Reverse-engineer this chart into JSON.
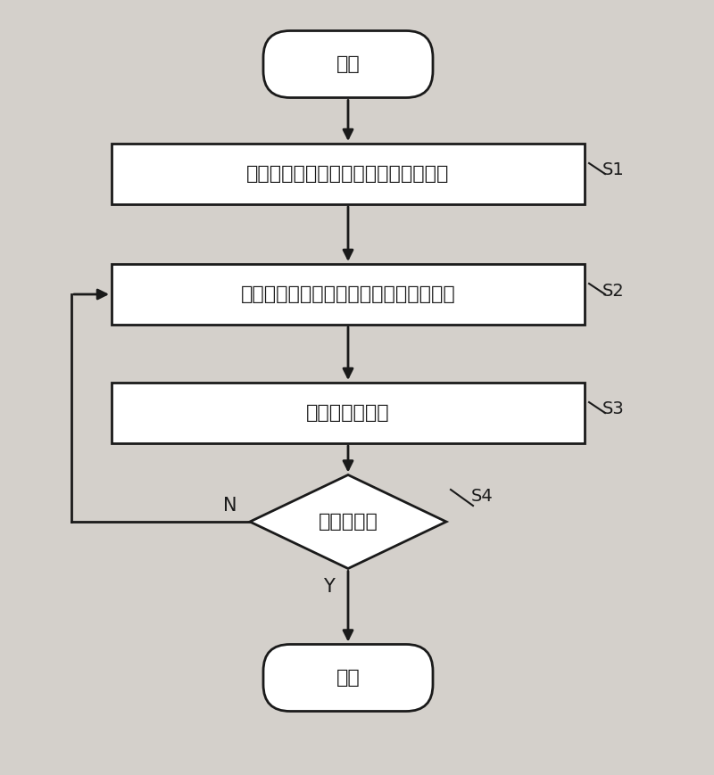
{
  "bg_color": "#d4d0cb",
  "box_color": "#ffffff",
  "box_edge_color": "#1a1a1a",
  "arrow_color": "#1a1a1a",
  "text_color": "#1a1a1a",
  "start_end_text": [
    "开始",
    "结束"
  ],
  "box_texts": [
    "对栅格图像进行边界检测，得到边界点",
    "边界点进行领域追踪，得到下一个边界点",
    "转化为边缝路径",
    "是否为终点"
  ],
  "step_labels": [
    "S1",
    "S2",
    "S3",
    "S4"
  ],
  "branch_labels": [
    "N",
    "Y"
  ],
  "figsize": [
    8.0,
    8.69
  ],
  "dpi": 100,
  "font_size_main": 16,
  "font_size_label": 14,
  "font_size_branch": 15
}
